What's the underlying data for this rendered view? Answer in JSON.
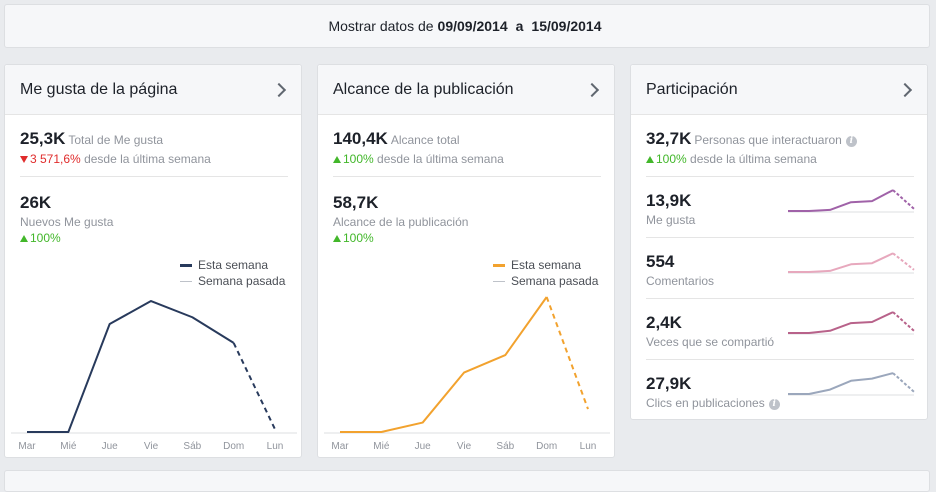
{
  "banner": {
    "prefix": "Mostrar datos de",
    "start": "09/09/2014",
    "connector": "a",
    "end": "15/09/2014"
  },
  "cards": {
    "likes": {
      "title": "Me gusta de la página",
      "total_value": "25,3K",
      "total_label": "Total de Me gusta",
      "total_change": "3 571,6%",
      "total_change_label": "desde la última semana",
      "new_value": "26K",
      "new_label": "Nuevos Me gusta",
      "new_change": "100%",
      "legend_this_week": "Esta semana",
      "legend_last_week": "Semana pasada"
    },
    "reach": {
      "title": "Alcance de la publicación",
      "total_value": "140,4K",
      "total_label": "Alcance total",
      "total_change": "100%",
      "total_change_label": "desde la última semana",
      "post_value": "58,7K",
      "post_label": "Alcance de la publicación",
      "post_change": "100%",
      "legend_this_week": "Esta semana",
      "legend_last_week": "Semana pasada"
    },
    "engagement": {
      "title": "Participación",
      "total_value": "32,7K",
      "total_label": "Personas que interactuaron",
      "total_change": "100%",
      "total_change_label": "desde la última semana",
      "rows": [
        {
          "value": "13,9K",
          "label": "Me gusta"
        },
        {
          "value": "554",
          "label": "Comentarios"
        },
        {
          "value": "2,4K",
          "label": "Veces que se compartió"
        },
        {
          "value": "27,9K",
          "label": "Clics en publicaciones"
        }
      ]
    }
  },
  "colors": {
    "likes_line": "#283a5c",
    "reach_line": "#f2a22e",
    "last_week": "#bec2c9",
    "up": "#42b72a",
    "down": "#e02c2c",
    "spark": [
      "#a062a8",
      "#e7a8bd",
      "#b8628a",
      "#9ba7bc"
    ]
  },
  "chart_data": [
    {
      "type": "line",
      "x": [
        "Mar",
        "Mié",
        "Jue",
        "Vie",
        "Sáb",
        "Dom",
        "Lun"
      ],
      "series": [
        {
          "name": "Esta semana",
          "values": [
            0,
            0,
            0.8,
            0.97,
            0.85,
            0.66,
            0.02
          ],
          "projected_last": true
        }
      ],
      "ylim": [
        0,
        1
      ]
    },
    {
      "type": "line",
      "x": [
        "Mar",
        "Mié",
        "Jue",
        "Vie",
        "Sáb",
        "Dom",
        "Lun"
      ],
      "series": [
        {
          "name": "Esta semana",
          "values": [
            0,
            0,
            0.07,
            0.44,
            0.57,
            1.0,
            0.17
          ],
          "projected_last": true
        }
      ],
      "ylim": [
        0,
        1
      ]
    },
    {
      "type": "line",
      "series": [
        {
          "name": "Me gusta",
          "values": [
            0.0,
            0.0,
            0.05,
            0.4,
            0.45,
            0.95,
            0.1
          ]
        },
        {
          "name": "Comentarios",
          "values": [
            0.0,
            0.0,
            0.05,
            0.35,
            0.4,
            0.85,
            0.1
          ]
        },
        {
          "name": "Veces que se compartió",
          "values": [
            0.0,
            0.0,
            0.1,
            0.45,
            0.5,
            0.95,
            0.1
          ]
        },
        {
          "name": "Clics en publicaciones",
          "values": [
            0.0,
            0.0,
            0.2,
            0.6,
            0.7,
            0.95,
            0.1
          ]
        }
      ],
      "ylim": [
        0,
        1
      ]
    }
  ]
}
